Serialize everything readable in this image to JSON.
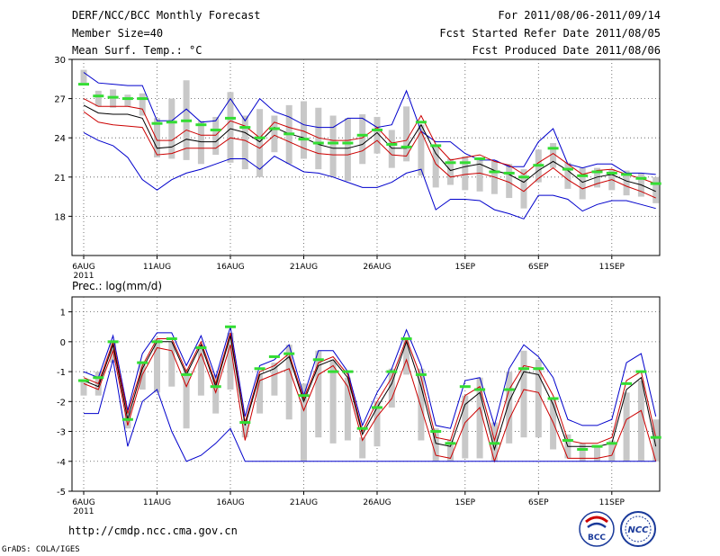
{
  "header": {
    "title": "DERF/NCC/BCC Monthly Forecast",
    "member_size": "Member Size=40",
    "variable": "Mean Surf. Temp.: °C",
    "forecast_period": "For 2011/08/06-2011/09/14",
    "start_date": "Fcst Started Refer Date 2011/08/05",
    "produced_date": "Fcst Produced Date 2011/08/06"
  },
  "footer": {
    "url": "http://cmdp.ncc.cma.gov.cn",
    "grads": "GrADS: COLA/IGES",
    "logo_left": "BCC",
    "logo_right": "NCC"
  },
  "colors": {
    "max_min": "#0000cc",
    "quartile": "#cc0000",
    "median": "#000000",
    "obs_bar": "#c8c8c8",
    "mean_mark": "#33dd33",
    "grid": "#555555"
  },
  "chart_data": [
    {
      "type": "line",
      "title": "Mean Surf. Temp.: °C",
      "xlabel": "",
      "ylabel": "",
      "ylim": [
        15,
        30
      ],
      "yticks": [
        18,
        21,
        24,
        27,
        30
      ],
      "ytick_labels": [
        "18",
        "21",
        "24",
        "27",
        "30"
      ],
      "xtick_days": [
        0,
        5,
        10,
        15,
        20,
        26,
        31,
        36
      ],
      "xtick_labels": [
        "6AUG",
        "11AUG",
        "16AUG",
        "21AUG",
        "26AUG",
        "1SEP",
        "6SEP",
        "11SEP"
      ],
      "year_label": "2011",
      "days": 40,
      "series": [
        {
          "name": "max",
          "values": [
            29.0,
            28.2,
            28.1,
            28.0,
            28.0,
            25.3,
            25.3,
            26.2,
            25.2,
            25.3,
            27.0,
            25.3,
            27.0,
            26.0,
            25.6,
            25.0,
            24.8,
            24.8,
            25.5,
            25.5,
            24.8,
            25.0,
            27.6,
            24.5,
            23.7,
            23.7,
            22.8,
            22.3,
            22.3,
            21.8,
            21.8,
            23.7,
            24.7,
            22.0,
            21.7,
            22.0,
            22.0,
            21.3,
            21.3,
            21.2
          ]
        },
        {
          "name": "q75",
          "values": [
            27.0,
            26.4,
            26.4,
            26.4,
            26.2,
            23.8,
            23.8,
            24.6,
            24.2,
            24.2,
            25.3,
            24.9,
            24.0,
            25.2,
            24.8,
            24.5,
            24.0,
            23.8,
            23.8,
            24.0,
            24.8,
            23.6,
            23.8,
            25.7,
            23.5,
            22.3,
            22.5,
            22.7,
            22.2,
            21.9,
            21.2,
            22.1,
            22.8,
            22.0,
            21.2,
            21.5,
            21.6,
            21.2,
            20.9,
            20.5
          ]
        },
        {
          "name": "median",
          "values": [
            26.5,
            25.9,
            25.8,
            25.8,
            25.5,
            23.2,
            23.3,
            23.9,
            23.7,
            23.7,
            24.7,
            24.4,
            23.7,
            24.8,
            24.3,
            24.0,
            23.5,
            23.2,
            23.2,
            23.5,
            24.4,
            23.2,
            23.2,
            25.0,
            22.8,
            21.5,
            21.8,
            22.0,
            21.5,
            21.2,
            20.6,
            21.5,
            22.2,
            21.5,
            20.6,
            21.0,
            21.2,
            20.7,
            20.4,
            19.9
          ]
        },
        {
          "name": "q25",
          "values": [
            26.0,
            25.2,
            25.0,
            24.9,
            24.8,
            22.7,
            22.8,
            23.2,
            23.2,
            23.2,
            24.0,
            23.8,
            23.2,
            24.2,
            23.7,
            23.2,
            22.8,
            22.7,
            22.7,
            23.0,
            23.8,
            22.7,
            22.6,
            24.5,
            22.0,
            21.0,
            21.2,
            21.3,
            21.0,
            20.6,
            19.9,
            20.9,
            21.7,
            20.8,
            20.1,
            20.5,
            20.8,
            20.3,
            19.9,
            19.4
          ]
        },
        {
          "name": "min",
          "values": [
            24.4,
            23.8,
            23.4,
            22.5,
            20.8,
            20.0,
            20.8,
            21.3,
            21.6,
            22.0,
            22.4,
            22.4,
            21.6,
            22.6,
            22.0,
            21.4,
            21.3,
            21.0,
            20.6,
            20.2,
            20.2,
            20.6,
            21.3,
            21.6,
            18.5,
            19.3,
            19.3,
            19.2,
            18.5,
            18.2,
            17.8,
            19.6,
            19.6,
            19.3,
            18.4,
            18.9,
            19.2,
            19.2,
            18.9,
            18.6
          ]
        }
      ],
      "obs_bars": [
        [
          28.2,
          29.2
        ],
        [
          26.4,
          27.6
        ],
        [
          26.3,
          27.7
        ],
        [
          26.4,
          27.3
        ],
        [
          25.7,
          27.4
        ],
        [
          22.5,
          25.5
        ],
        [
          22.4,
          27.0
        ],
        [
          22.3,
          28.4
        ],
        [
          22.0,
          25.3
        ],
        [
          22.7,
          25.6
        ],
        [
          22.1,
          27.5
        ],
        [
          21.6,
          25.7
        ],
        [
          21.0,
          26.2
        ],
        [
          22.9,
          25.7
        ],
        [
          22.0,
          26.5
        ],
        [
          22.4,
          26.8
        ],
        [
          21.6,
          26.3
        ],
        [
          21.0,
          25.7
        ],
        [
          20.7,
          25.5
        ],
        [
          22.0,
          25.8
        ],
        [
          22.8,
          25.6
        ],
        [
          21.7,
          24.6
        ],
        [
          22.2,
          26.4
        ],
        [
          21.1,
          25.0
        ],
        [
          20.2,
          23.5
        ],
        [
          20.4,
          22.4
        ],
        [
          20.0,
          22.6
        ],
        [
          19.9,
          22.4
        ],
        [
          19.7,
          22.3
        ],
        [
          19.4,
          22.0
        ],
        [
          18.6,
          21.6
        ],
        [
          20.6,
          23.1
        ],
        [
          21.7,
          23.6
        ],
        [
          20.1,
          22.1
        ],
        [
          19.3,
          21.7
        ],
        [
          20.2,
          21.7
        ],
        [
          20.0,
          21.6
        ],
        [
          19.6,
          21.5
        ],
        [
          19.5,
          21.3
        ],
        [
          19.0,
          21.0
        ]
      ],
      "mean_marks": [
        28.1,
        27.2,
        27.1,
        27.0,
        27.0,
        25.1,
        25.2,
        25.3,
        25.0,
        24.6,
        25.5,
        24.8,
        24.0,
        24.7,
        24.3,
        23.9,
        23.6,
        23.6,
        23.6,
        24.2,
        24.6,
        23.5,
        23.3,
        25.2,
        23.4,
        22.1,
        22.1,
        22.4,
        21.4,
        21.3,
        21.0,
        21.9,
        23.2,
        21.6,
        21.1,
        21.4,
        21.3,
        21.2,
        20.9,
        20.5
      ]
    },
    {
      "type": "line",
      "title": "Prec.: log(mm/d)",
      "xlabel": "",
      "ylabel": "",
      "ylim": [
        -5,
        1.5
      ],
      "yticks": [
        -5,
        -4,
        -3,
        -2,
        -1,
        0,
        1
      ],
      "ytick_labels": [
        "-5",
        "-4",
        "-3",
        "-2",
        "-1",
        "0",
        "1"
      ],
      "xtick_days": [
        0,
        5,
        10,
        15,
        20,
        26,
        31,
        36
      ],
      "xtick_labels": [
        "6AUG",
        "11AUG",
        "16AUG",
        "21AUG",
        "26AUG",
        "1SEP",
        "6SEP",
        "11SEP"
      ],
      "year_label": "2011",
      "days": 40,
      "series": [
        {
          "name": "max",
          "values": [
            -1.0,
            -1.2,
            0.2,
            -2.3,
            -0.4,
            0.3,
            0.3,
            -0.8,
            0.2,
            -1.2,
            0.5,
            -2.5,
            -0.8,
            -0.6,
            -0.1,
            -1.8,
            -0.3,
            -0.3,
            -1.0,
            -2.8,
            -1.7,
            -0.9,
            0.4,
            -0.8,
            -2.8,
            -2.9,
            -1.3,
            -1.2,
            -2.8,
            -0.9,
            -0.1,
            -0.5,
            -1.2,
            -2.6,
            -2.8,
            -2.8,
            -2.6,
            -0.7,
            -0.4,
            -2.5
          ]
        },
        {
          "name": "q75",
          "values": [
            -1.2,
            -1.4,
            0.0,
            -2.4,
            -0.8,
            0.1,
            0.1,
            -1.0,
            0.0,
            -1.4,
            0.3,
            -2.7,
            -1.0,
            -0.8,
            -0.4,
            -1.9,
            -0.7,
            -0.5,
            -1.1,
            -3.0,
            -2.0,
            -1.2,
            0.1,
            -1.2,
            -3.2,
            -3.3,
            -1.8,
            -1.5,
            -3.3,
            -1.6,
            -0.8,
            -0.9,
            -1.8,
            -3.3,
            -3.4,
            -3.4,
            -3.2,
            -1.3,
            -1.0,
            -3.2
          ]
        },
        {
          "name": "median",
          "values": [
            -1.3,
            -1.5,
            -0.1,
            -2.6,
            -0.9,
            0.0,
            0.0,
            -1.1,
            -0.1,
            -1.5,
            0.2,
            -2.8,
            -1.1,
            -0.9,
            -0.5,
            -2.0,
            -0.8,
            -0.6,
            -1.2,
            -3.1,
            -2.2,
            -1.4,
            0.0,
            -1.5,
            -3.4,
            -3.5,
            -2.1,
            -1.7,
            -3.6,
            -2.0,
            -1.0,
            -1.1,
            -2.1,
            -3.5,
            -3.5,
            -3.5,
            -3.4,
            -1.6,
            -1.2,
            -3.5
          ]
        },
        {
          "name": "q25",
          "values": [
            -1.4,
            -1.6,
            -0.3,
            -2.8,
            -1.1,
            -0.2,
            -0.3,
            -1.5,
            -0.4,
            -1.7,
            -0.1,
            -3.3,
            -1.3,
            -1.1,
            -0.9,
            -2.3,
            -1.1,
            -0.8,
            -1.5,
            -3.3,
            -2.5,
            -1.9,
            -0.6,
            -2.2,
            -3.8,
            -3.9,
            -2.7,
            -2.2,
            -4.0,
            -2.6,
            -1.6,
            -1.7,
            -2.7,
            -3.9,
            -3.9,
            -3.9,
            -3.8,
            -2.6,
            -2.3,
            -4.0
          ]
        },
        {
          "name": "min",
          "values": [
            -2.4,
            -2.4,
            -0.6,
            -3.5,
            -2.0,
            -1.6,
            -3.0,
            -4.0,
            -3.8,
            -3.4,
            -2.9,
            -4.0,
            -4.0,
            -4.0,
            -4.0,
            -4.0,
            -4.0,
            -4.0,
            -4.0,
            -4.0,
            -4.0,
            -4.0,
            -4.0,
            -4.0,
            -4.0,
            -4.0,
            -4.0,
            -4.0,
            -4.0,
            -4.0,
            -4.0,
            -4.0,
            -4.0,
            -4.0,
            -4.0,
            -4.0,
            -4.0,
            -4.0,
            -4.0,
            -4.0
          ]
        }
      ],
      "obs_bars": [
        [
          -1.8,
          -1.3
        ],
        [
          -1.8,
          -1.0
        ],
        [
          -0.7,
          0.0
        ],
        [
          -2.9,
          -2.3
        ],
        [
          -1.6,
          -0.7
        ],
        [
          -1.7,
          0.1
        ],
        [
          -1.5,
          0.0
        ],
        [
          -2.9,
          -0.9
        ],
        [
          -1.8,
          -0.1
        ],
        [
          -2.4,
          -1.1
        ],
        [
          -1.6,
          0.3
        ],
        [
          -3.2,
          -2.6
        ],
        [
          -2.4,
          -1.1
        ],
        [
          -1.8,
          -0.7
        ],
        [
          -2.6,
          -0.1
        ],
        [
          -4.0,
          -1.4
        ],
        [
          -3.2,
          -0.3
        ],
        [
          -3.4,
          -0.6
        ],
        [
          -3.3,
          -1.2
        ],
        [
          -3.9,
          -3.2
        ],
        [
          -3.5,
          -2.0
        ],
        [
          -2.2,
          -0.9
        ],
        [
          -1.1,
          0.1
        ],
        [
          -3.3,
          -0.9
        ],
        [
          -4.0,
          -2.9
        ],
        [
          -4.0,
          -3.3
        ],
        [
          -3.9,
          -1.8
        ],
        [
          -3.9,
          -1.2
        ],
        [
          -4.0,
          -2.7
        ],
        [
          -3.4,
          -1.0
        ],
        [
          -3.2,
          -0.3
        ],
        [
          -3.2,
          -0.6
        ],
        [
          -3.6,
          -1.9
        ],
        [
          -3.9,
          -3.1
        ],
        [
          -4.0,
          -3.4
        ],
        [
          -4.0,
          -3.5
        ],
        [
          -4.0,
          -3.3
        ],
        [
          -4.0,
          -1.7
        ],
        [
          -4.0,
          -1.3
        ],
        [
          -4.0,
          -2.6
        ]
      ],
      "mean_marks": [
        -1.3,
        -1.2,
        0.0,
        -2.6,
        -0.7,
        0.0,
        0.1,
        -1.1,
        -0.2,
        -1.5,
        0.5,
        -2.7,
        -0.9,
        -0.5,
        -0.4,
        -1.8,
        -0.6,
        -1.0,
        -1.0,
        -2.9,
        -2.2,
        -1.0,
        0.1,
        -1.1,
        -3.0,
        -3.4,
        -1.5,
        -1.6,
        -3.4,
        -1.6,
        -0.9,
        -0.9,
        -1.9,
        -3.3,
        -3.6,
        -3.5,
        -3.4,
        -1.4,
        -1.0,
        -3.2
      ]
    }
  ]
}
